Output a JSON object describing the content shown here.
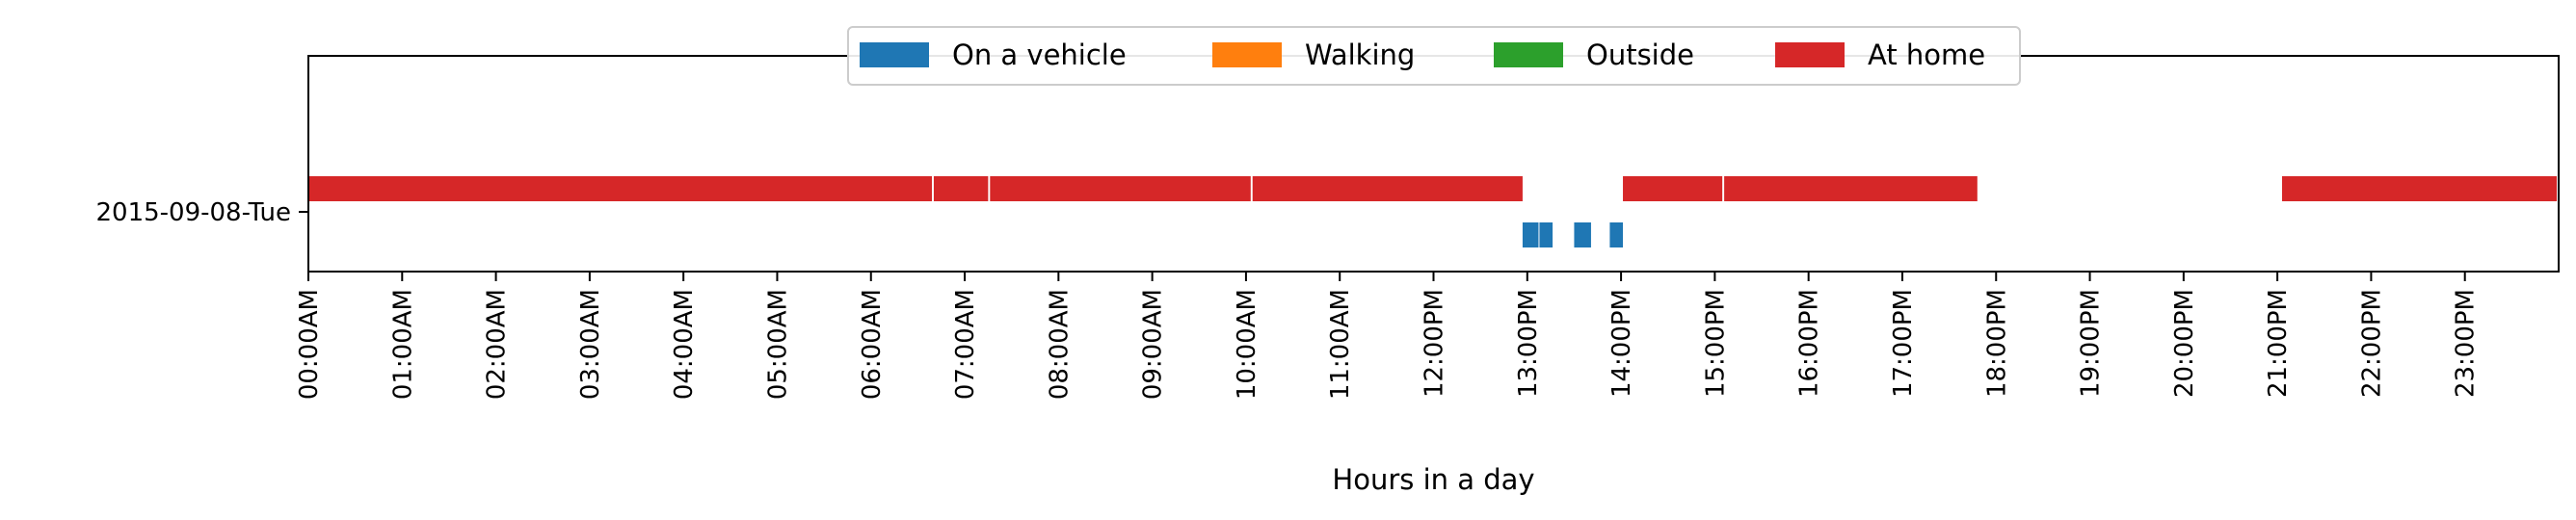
{
  "chart_data": {
    "type": "timeline",
    "title": "",
    "xlabel": "Hours in a day",
    "ylabel": "",
    "xlim": [
      0,
      24
    ],
    "x_ticks": [
      {
        "value": 0,
        "label": "00:00AM"
      },
      {
        "value": 1,
        "label": "01:00AM"
      },
      {
        "value": 2,
        "label": "02:00AM"
      },
      {
        "value": 3,
        "label": "03:00AM"
      },
      {
        "value": 4,
        "label": "04:00AM"
      },
      {
        "value": 5,
        "label": "05:00AM"
      },
      {
        "value": 6,
        "label": "06:00AM"
      },
      {
        "value": 7,
        "label": "07:00AM"
      },
      {
        "value": 8,
        "label": "08:00AM"
      },
      {
        "value": 9,
        "label": "09:00AM"
      },
      {
        "value": 10,
        "label": "10:00AM"
      },
      {
        "value": 11,
        "label": "11:00AM"
      },
      {
        "value": 12,
        "label": "12:00PM"
      },
      {
        "value": 13,
        "label": "13:00PM"
      },
      {
        "value": 14,
        "label": "14:00PM"
      },
      {
        "value": 15,
        "label": "15:00PM"
      },
      {
        "value": 16,
        "label": "16:00PM"
      },
      {
        "value": 17,
        "label": "17:00PM"
      },
      {
        "value": 18,
        "label": "18:00PM"
      },
      {
        "value": 19,
        "label": "19:00PM"
      },
      {
        "value": 20,
        "label": "20:00PM"
      },
      {
        "value": 21,
        "label": "21:00PM"
      },
      {
        "value": 22,
        "label": "22:00PM"
      },
      {
        "value": 23,
        "label": "23:00PM"
      }
    ],
    "y_categories": [
      "2015-09-08-Tue"
    ],
    "legend": {
      "placement": "top-center",
      "entries": [
        {
          "name": "On a vehicle",
          "color": "#1f77b4"
        },
        {
          "name": "Walking",
          "color": "#ff7f0e"
        },
        {
          "name": "Outside",
          "color": "#2ca02c"
        },
        {
          "name": "At home",
          "color": "#d62728"
        }
      ]
    },
    "series": [
      {
        "name": "At home",
        "color": "#d62728",
        "row": "2015-09-08-Tue",
        "segments": [
          [
            0.0,
            6.65
          ],
          [
            6.67,
            7.25
          ],
          [
            7.27,
            10.05
          ],
          [
            10.07,
            12.95
          ],
          [
            14.02,
            15.08
          ],
          [
            15.1,
            17.8
          ],
          [
            21.05,
            23.98
          ]
        ]
      },
      {
        "name": "On a vehicle",
        "color": "#1f77b4",
        "row": "2015-09-08-Tue",
        "segments": [
          [
            12.95,
            13.12
          ],
          [
            13.13,
            13.27
          ],
          [
            13.5,
            13.68
          ],
          [
            13.88,
            14.02
          ]
        ]
      }
    ]
  }
}
